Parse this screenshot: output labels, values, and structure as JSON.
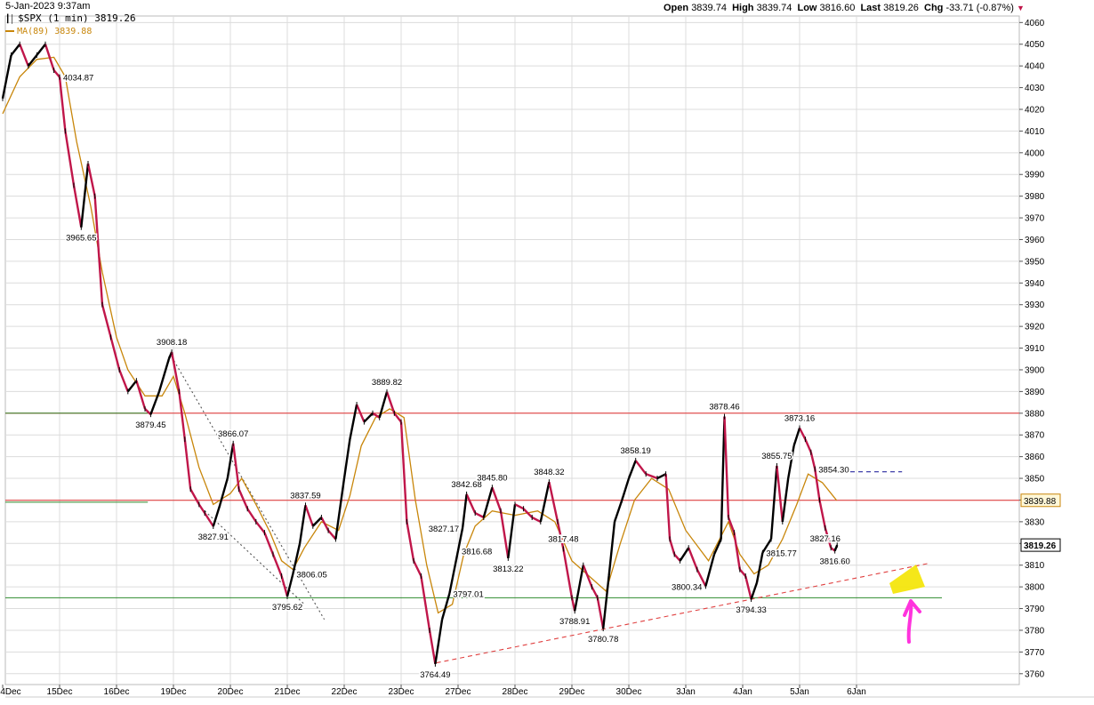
{
  "header": {
    "date_time": "5-Jan-2023 9:37am",
    "symbol_line": "$SPX (1 min) 3819.26",
    "ma_line": "MA(89) 3839.88",
    "open_label": "Open",
    "open_value": "3839.74",
    "high_label": "High",
    "high_value": "3839.74",
    "low_label": "Low",
    "low_value": "3816.60",
    "last_label": "Last",
    "last_value": "3819.26",
    "chg_label": "Chg",
    "chg_value": "-33.71 (-0.87%)"
  },
  "colors": {
    "price": "#000000",
    "price_down": "#c0164a",
    "ma": "#c8860a",
    "resistance": "#e23030",
    "support": "#2e8b2e",
    "trend": "#e04040",
    "highlight": "#f4e400",
    "arrow": "#ff33dd",
    "grid": "#dcdcdc"
  },
  "chart_data": {
    "type": "line",
    "ylim": [
      3755,
      4063
    ],
    "yticks": [
      4060,
      4050,
      4040,
      4030,
      4020,
      4010,
      4000,
      3990,
      3980,
      3970,
      3960,
      3950,
      3940,
      3930,
      3920,
      3910,
      3900,
      3890,
      3880,
      3870,
      3860,
      3850,
      3840,
      3830,
      3820,
      3810,
      3800,
      3790,
      3780,
      3770,
      3760
    ],
    "xticks": [
      "4Dec",
      "15Dec",
      "16Dec",
      "19Dec",
      "20Dec",
      "21Dec",
      "22Dec",
      "23Dec",
      "27Dec",
      "28Dec",
      "29Dec",
      "30Dec",
      "3Jan",
      "4Jan",
      "5Jan",
      "6Jan"
    ],
    "series": [
      {
        "name": "$SPX (1 min)",
        "points": [
          [
            0.0,
            4025
          ],
          [
            0.15,
            4045
          ],
          [
            0.3,
            4050
          ],
          [
            0.45,
            4040
          ],
          [
            0.6,
            4045
          ],
          [
            0.75,
            4050
          ],
          [
            0.9,
            4038
          ],
          [
            1.0,
            4034.87
          ],
          [
            1.1,
            4010
          ],
          [
            1.25,
            3985
          ],
          [
            1.38,
            3965.65
          ],
          [
            1.5,
            3995
          ],
          [
            1.62,
            3980
          ],
          [
            1.75,
            3930
          ],
          [
            1.9,
            3915
          ],
          [
            2.05,
            3900
          ],
          [
            2.2,
            3890
          ],
          [
            2.35,
            3895
          ],
          [
            2.5,
            3882
          ],
          [
            2.6,
            3879.45
          ],
          [
            2.75,
            3890
          ],
          [
            2.92,
            3905
          ],
          [
            2.97,
            3908.18
          ],
          [
            3.1,
            3890
          ],
          [
            3.2,
            3868
          ],
          [
            3.3,
            3845
          ],
          [
            3.45,
            3838
          ],
          [
            3.55,
            3834
          ],
          [
            3.7,
            3827.91
          ],
          [
            3.82,
            3838
          ],
          [
            3.95,
            3850
          ],
          [
            4.05,
            3866.07
          ],
          [
            4.15,
            3845
          ],
          [
            4.3,
            3836
          ],
          [
            4.45,
            3830
          ],
          [
            4.6,
            3825
          ],
          [
            4.75,
            3815
          ],
          [
            4.9,
            3805
          ],
          [
            5.0,
            3795.62
          ],
          [
            5.1,
            3806.05
          ],
          [
            5.22,
            3820
          ],
          [
            5.32,
            3837.59
          ],
          [
            5.45,
            3828
          ],
          [
            5.6,
            3832
          ],
          [
            5.72,
            3826
          ],
          [
            5.85,
            3822
          ],
          [
            6.0,
            3850
          ],
          [
            6.1,
            3868
          ],
          [
            6.22,
            3884
          ],
          [
            6.35,
            3876
          ],
          [
            6.5,
            3880
          ],
          [
            6.62,
            3878
          ],
          [
            6.75,
            3889.82
          ],
          [
            6.88,
            3880
          ],
          [
            7.0,
            3876
          ],
          [
            7.1,
            3830
          ],
          [
            7.22,
            3812
          ],
          [
            7.35,
            3805
          ],
          [
            7.5,
            3780
          ],
          [
            7.6,
            3764.49
          ],
          [
            7.72,
            3785
          ],
          [
            7.85,
            3797.01
          ],
          [
            8.0,
            3816.68
          ],
          [
            8.08,
            3827.17
          ],
          [
            8.15,
            3842.68
          ],
          [
            8.3,
            3834
          ],
          [
            8.45,
            3832
          ],
          [
            8.6,
            3845.8
          ],
          [
            8.75,
            3835
          ],
          [
            8.88,
            3813.22
          ],
          [
            9.0,
            3838
          ],
          [
            9.15,
            3836
          ],
          [
            9.3,
            3832
          ],
          [
            9.45,
            3830
          ],
          [
            9.6,
            3848.32
          ],
          [
            9.75,
            3830
          ],
          [
            9.85,
            3817.48
          ],
          [
            10.0,
            3795
          ],
          [
            10.05,
            3788.91
          ],
          [
            10.2,
            3810
          ],
          [
            10.35,
            3800
          ],
          [
            10.45,
            3795
          ],
          [
            10.55,
            3780.78
          ],
          [
            10.65,
            3805
          ],
          [
            10.75,
            3830
          ],
          [
            10.88,
            3840
          ],
          [
            11.0,
            3850
          ],
          [
            11.12,
            3858.19
          ],
          [
            11.3,
            3852
          ],
          [
            11.5,
            3850
          ],
          [
            11.65,
            3852
          ],
          [
            11.72,
            3822
          ],
          [
            11.8,
            3815
          ],
          [
            11.9,
            3812
          ],
          [
            12.05,
            3818
          ],
          [
            12.2,
            3808
          ],
          [
            12.35,
            3800.34
          ],
          [
            12.5,
            3815
          ],
          [
            12.62,
            3822
          ],
          [
            12.68,
            3878.46
          ],
          [
            12.75,
            3832
          ],
          [
            12.85,
            3825
          ],
          [
            12.95,
            3808
          ],
          [
            13.05,
            3805
          ],
          [
            13.15,
            3794.33
          ],
          [
            13.25,
            3802
          ],
          [
            13.35,
            3815.77
          ],
          [
            13.5,
            3822
          ],
          [
            13.6,
            3855.75
          ],
          [
            13.7,
            3830
          ],
          [
            13.8,
            3850
          ],
          [
            13.9,
            3865
          ],
          [
            14.0,
            3873.16
          ],
          [
            14.1,
            3868
          ],
          [
            14.2,
            3862
          ],
          [
            14.27,
            3854.3
          ],
          [
            14.35,
            3840
          ],
          [
            14.45,
            3827.16
          ],
          [
            14.55,
            3818
          ],
          [
            14.62,
            3816.6
          ],
          [
            14.66,
            3819.26
          ]
        ]
      },
      {
        "name": "MA(89)",
        "points": [
          [
            0.0,
            4018
          ],
          [
            0.3,
            4035
          ],
          [
            0.6,
            4043
          ],
          [
            0.9,
            4044
          ],
          [
            1.1,
            4035
          ],
          [
            1.3,
            4005
          ],
          [
            1.55,
            3975
          ],
          [
            1.75,
            3945
          ],
          [
            2.0,
            3915
          ],
          [
            2.2,
            3900
          ],
          [
            2.5,
            3888
          ],
          [
            2.8,
            3888
          ],
          [
            3.0,
            3897
          ],
          [
            3.2,
            3880
          ],
          [
            3.45,
            3855
          ],
          [
            3.7,
            3838
          ],
          [
            4.0,
            3843
          ],
          [
            4.2,
            3850
          ],
          [
            4.45,
            3838
          ],
          [
            4.7,
            3825
          ],
          [
            4.9,
            3812
          ],
          [
            5.1,
            3808
          ],
          [
            5.3,
            3818
          ],
          [
            5.6,
            3830
          ],
          [
            5.9,
            3826
          ],
          [
            6.1,
            3842
          ],
          [
            6.3,
            3865
          ],
          [
            6.55,
            3878
          ],
          [
            6.8,
            3882
          ],
          [
            7.05,
            3878
          ],
          [
            7.25,
            3840
          ],
          [
            7.45,
            3810
          ],
          [
            7.65,
            3788
          ],
          [
            7.9,
            3792
          ],
          [
            8.1,
            3815
          ],
          [
            8.3,
            3828
          ],
          [
            8.6,
            3835
          ],
          [
            9.0,
            3833
          ],
          [
            9.4,
            3835
          ],
          [
            9.7,
            3830
          ],
          [
            10.0,
            3812
          ],
          [
            10.3,
            3805
          ],
          [
            10.6,
            3798
          ],
          [
            10.85,
            3820
          ],
          [
            11.1,
            3840
          ],
          [
            11.4,
            3850
          ],
          [
            11.7,
            3845
          ],
          [
            12.0,
            3826
          ],
          [
            12.4,
            3812
          ],
          [
            12.75,
            3830
          ],
          [
            12.95,
            3815
          ],
          [
            13.2,
            3806
          ],
          [
            13.45,
            3810
          ],
          [
            13.7,
            3822
          ],
          [
            13.95,
            3838
          ],
          [
            14.15,
            3852
          ],
          [
            14.4,
            3848
          ],
          [
            14.65,
            3839.88
          ]
        ]
      }
    ],
    "price_labels": [
      {
        "text": "4034.87",
        "x": 1.0,
        "y": 4034.87,
        "pos": "right"
      },
      {
        "text": "3965.65",
        "x": 1.38,
        "y": 3965.65,
        "pos": "below"
      },
      {
        "text": "3908.18",
        "x": 2.97,
        "y": 3908.18,
        "pos": "above"
      },
      {
        "text": "3879.45",
        "x": 2.6,
        "y": 3879.45,
        "pos": "below"
      },
      {
        "text": "3866.07",
        "x": 4.05,
        "y": 3866.07,
        "pos": "above"
      },
      {
        "text": "3827.91",
        "x": 3.7,
        "y": 3827.91,
        "pos": "below"
      },
      {
        "text": "3837.59",
        "x": 5.32,
        "y": 3837.59,
        "pos": "above"
      },
      {
        "text": "3806.05",
        "x": 5.1,
        "y": 3806.05,
        "pos": "right"
      },
      {
        "text": "3795.62",
        "x": 5.0,
        "y": 3795.62,
        "pos": "below"
      },
      {
        "text": "3889.82",
        "x": 6.75,
        "y": 3889.82,
        "pos": "above"
      },
      {
        "text": "3764.49",
        "x": 7.6,
        "y": 3764.49,
        "pos": "below"
      },
      {
        "text": "3797.01",
        "x": 7.85,
        "y": 3797.01,
        "pos": "right"
      },
      {
        "text": "3816.68",
        "x": 8.0,
        "y": 3816.68,
        "pos": "right"
      },
      {
        "text": "3827.17",
        "x": 8.08,
        "y": 3827.17,
        "pos": "left"
      },
      {
        "text": "3842.68",
        "x": 8.15,
        "y": 3842.68,
        "pos": "above"
      },
      {
        "text": "3845.80",
        "x": 8.6,
        "y": 3845.8,
        "pos": "above"
      },
      {
        "text": "3813.22",
        "x": 8.88,
        "y": 3813.22,
        "pos": "below"
      },
      {
        "text": "3848.32",
        "x": 9.6,
        "y": 3848.32,
        "pos": "above"
      },
      {
        "text": "3817.48",
        "x": 9.85,
        "y": 3817.48,
        "pos": "above"
      },
      {
        "text": "3788.91",
        "x": 10.05,
        "y": 3788.91,
        "pos": "below"
      },
      {
        "text": "3780.78",
        "x": 10.55,
        "y": 3780.78,
        "pos": "below"
      },
      {
        "text": "3858.19",
        "x": 11.12,
        "y": 3858.19,
        "pos": "above"
      },
      {
        "text": "3800.34",
        "x": 12.35,
        "y": 3800.34,
        "pos": "left"
      },
      {
        "text": "3878.46",
        "x": 12.68,
        "y": 3878.46,
        "pos": "above"
      },
      {
        "text": "3794.33",
        "x": 13.15,
        "y": 3794.33,
        "pos": "below"
      },
      {
        "text": "3815.77",
        "x": 13.35,
        "y": 3815.77,
        "pos": "right"
      },
      {
        "text": "3855.75",
        "x": 13.6,
        "y": 3855.75,
        "pos": "above"
      },
      {
        "text": "3873.16",
        "x": 14.0,
        "y": 3873.16,
        "pos": "above"
      },
      {
        "text": "3854.30",
        "x": 14.27,
        "y": 3854.3,
        "pos": "right"
      },
      {
        "text": "3827.16",
        "x": 14.45,
        "y": 3827.16,
        "pos": "below"
      },
      {
        "text": "3816.60",
        "x": 14.62,
        "y": 3816.6,
        "pos": "below"
      }
    ],
    "horizontal_lines": [
      {
        "y": 3880,
        "color": "resistance"
      },
      {
        "y": 3839.88,
        "color": "resistance"
      },
      {
        "y": 3880,
        "color": "support",
        "x_end": 2.55
      },
      {
        "y": 3839,
        "color": "support",
        "x_end": 2.55
      },
      {
        "y": 3795,
        "color": "support",
        "x_end": 16.5
      }
    ],
    "trend_lines": [
      {
        "from": [
          2.97,
          3906
        ],
        "to": [
          5.65,
          3785
        ],
        "color": "#555555",
        "style": "dotted"
      },
      {
        "from": [
          3.55,
          3835
        ],
        "to": [
          5.3,
          3792
        ],
        "color": "#555555",
        "style": "dotted"
      },
      {
        "from": [
          7.62,
          3765
        ],
        "to": [
          16.3,
          3811
        ],
        "color": "trend",
        "style": "dashed"
      },
      {
        "from": [
          14.75,
          3853
        ],
        "to": [
          15.8,
          3853
        ],
        "color": "#2a2aa0",
        "style": "dashed"
      }
    ],
    "axis_badges": [
      {
        "text": "3839.88",
        "y": 3839.88,
        "style": "ma"
      },
      {
        "text": "3819.26",
        "y": 3819.26,
        "style": "last"
      }
    ],
    "grid": true,
    "legend": "top-left"
  }
}
